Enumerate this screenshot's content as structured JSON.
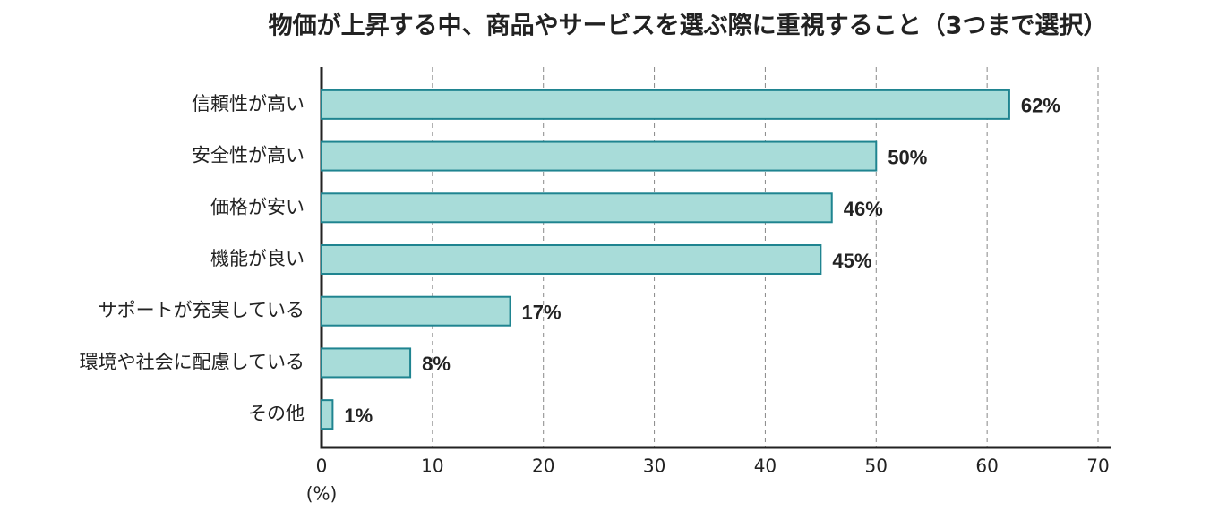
{
  "chart_data": {
    "type": "bar",
    "orientation": "horizontal",
    "title": "物価が上昇する中、商品やサービスを選ぶ際に重視すること（3つまで選択）",
    "xlabel": "(%)",
    "categories": [
      "信頼性が高い",
      "安全性が高い",
      "価格が安い",
      "機能が良い",
      "サポートが充実している",
      "環境や社会に配慮している",
      "その他"
    ],
    "values": [
      62,
      50,
      46,
      45,
      17,
      8,
      1
    ],
    "value_labels": [
      "62%",
      "50%",
      "46%",
      "45%",
      "17%",
      "8%",
      "1%"
    ],
    "color": "#a8dcd9",
    "edge_color": "#1f8490",
    "xlim": [
      0,
      70
    ],
    "xticks": [
      0,
      10,
      20,
      30,
      40,
      50,
      60,
      70
    ],
    "grid": true
  }
}
